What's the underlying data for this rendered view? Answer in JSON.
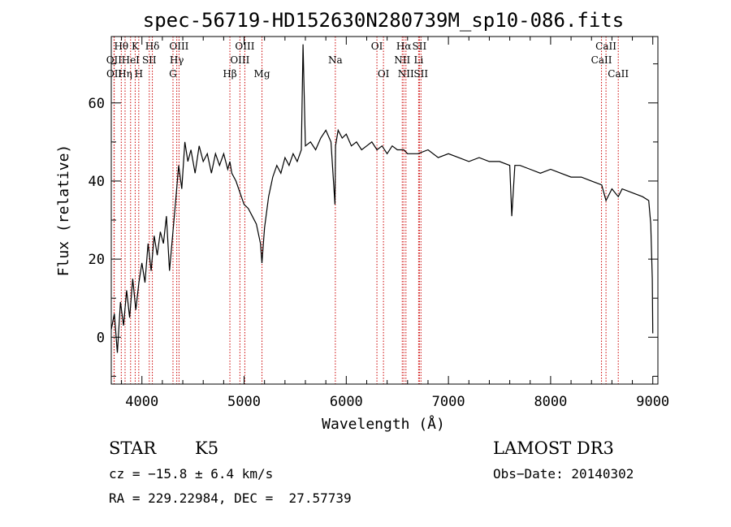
{
  "chart_data": {
    "type": "line",
    "title": "spec-56719-HD152630N280739M_sp10-086.fits",
    "xlabel": "Wavelength (Å)",
    "ylabel": "Flux (relative)",
    "xlim": [
      3700,
      9050
    ],
    "ylim": [
      -12,
      77
    ],
    "xticks": [
      4000,
      5000,
      6000,
      7000,
      8000,
      9000
    ],
    "yticks": [
      0,
      20,
      40,
      60
    ],
    "series": [
      {
        "name": "spectrum",
        "x": [
          3700,
          3730,
          3760,
          3790,
          3820,
          3850,
          3880,
          3910,
          3940,
          3970,
          4000,
          4030,
          4060,
          4090,
          4120,
          4150,
          4180,
          4210,
          4240,
          4270,
          4300,
          4330,
          4360,
          4390,
          4420,
          4450,
          4480,
          4520,
          4560,
          4600,
          4640,
          4680,
          4720,
          4760,
          4800,
          4840,
          4861,
          4880,
          4920,
          4960,
          5000,
          5040,
          5080,
          5120,
          5160,
          5175,
          5200,
          5240,
          5280,
          5320,
          5360,
          5400,
          5440,
          5480,
          5520,
          5560,
          5577,
          5600,
          5650,
          5700,
          5750,
          5800,
          5850,
          5889,
          5895,
          5920,
          5960,
          6000,
          6050,
          6100,
          6150,
          6200,
          6250,
          6300,
          6350,
          6400,
          6450,
          6500,
          6563,
          6600,
          6700,
          6800,
          6900,
          7000,
          7100,
          7200,
          7300,
          7400,
          7500,
          7600,
          7620,
          7650,
          7700,
          7800,
          7900,
          8000,
          8100,
          8200,
          8300,
          8400,
          8500,
          8542,
          8600,
          8662,
          8700,
          8800,
          8900,
          8960,
          8980,
          8995,
          9000
        ],
        "y": [
          2,
          6,
          -4,
          9,
          3,
          12,
          5,
          15,
          7,
          14,
          19,
          14,
          24,
          17,
          26,
          21,
          27,
          24,
          31,
          17,
          26,
          35,
          44,
          38,
          50,
          45,
          48,
          42,
          49,
          45,
          47,
          42,
          47,
          44,
          47,
          43,
          45,
          42,
          40,
          37,
          34,
          33,
          31,
          29,
          24,
          19,
          28,
          36,
          41,
          44,
          42,
          46,
          44,
          47,
          45,
          48,
          75,
          49,
          50,
          48,
          51,
          53,
          50,
          34,
          49,
          53,
          51,
          52,
          49,
          50,
          48,
          49,
          50,
          48,
          49,
          47,
          49,
          48,
          48,
          47,
          47,
          48,
          46,
          47,
          46,
          45,
          46,
          45,
          45,
          44,
          31,
          44,
          44,
          43,
          42,
          43,
          42,
          41,
          41,
          40,
          39,
          35,
          38,
          36,
          38,
          37,
          36,
          35,
          29,
          15,
          1
        ]
      }
    ],
    "emission_lines": [
      {
        "label": "Hθ",
        "x": 3798,
        "row": 0
      },
      {
        "label": "OII",
        "x": 3727,
        "row": 1
      },
      {
        "label": "OII",
        "x": 3729,
        "row": 2
      },
      {
        "label": "Hη",
        "x": 3835,
        "row": 2
      },
      {
        "label": "HeI",
        "x": 3889,
        "row": 1
      },
      {
        "label": "K",
        "x": 3934,
        "row": 0
      },
      {
        "label": "SII",
        "x": 4072,
        "row": 1
      },
      {
        "label": "H",
        "x": 3969,
        "row": 2
      },
      {
        "label": "Hδ",
        "x": 4102,
        "row": 0
      },
      {
        "label": "OIII",
        "x": 4363,
        "row": 0
      },
      {
        "label": "Hγ",
        "x": 4341,
        "row": 1
      },
      {
        "label": "G",
        "x": 4304,
        "row": 2
      },
      {
        "label": "OIII",
        "x": 5007,
        "row": 0
      },
      {
        "label": "OIII",
        "x": 4959,
        "row": 1
      },
      {
        "label": "Hβ",
        "x": 4861,
        "row": 2
      },
      {
        "label": "Mg",
        "x": 5175,
        "row": 2
      },
      {
        "label": "Na",
        "x": 5893,
        "row": 1
      },
      {
        "label": "OI",
        "x": 6300,
        "row": 0
      },
      {
        "label": "OI",
        "x": 6364,
        "row": 2
      },
      {
        "label": "Hα",
        "x": 6563,
        "row": 0
      },
      {
        "label": "SII",
        "x": 6716,
        "row": 0
      },
      {
        "label": "NII",
        "x": 6548,
        "row": 1
      },
      {
        "label": "Li",
        "x": 6708,
        "row": 1
      },
      {
        "label": "NII",
        "x": 6584,
        "row": 2
      },
      {
        "label": "SII",
        "x": 6731,
        "row": 2
      },
      {
        "label": "CaII",
        "x": 8542,
        "row": 0
      },
      {
        "label": "CaII",
        "x": 8498,
        "row": 1
      },
      {
        "label": "CaII",
        "x": 8662,
        "row": 2
      }
    ],
    "line_color": "#000000",
    "marker_color": "#cc0000"
  },
  "info": {
    "object_class": "STAR",
    "subclass": "K5",
    "survey": "LAMOST DR3",
    "velocity": "cz = −15.8 ± 6.4 km/s",
    "obs_date": "Obs−Date: 20140302",
    "coords": "RA = 229.22984, DEC =  27.57739"
  }
}
